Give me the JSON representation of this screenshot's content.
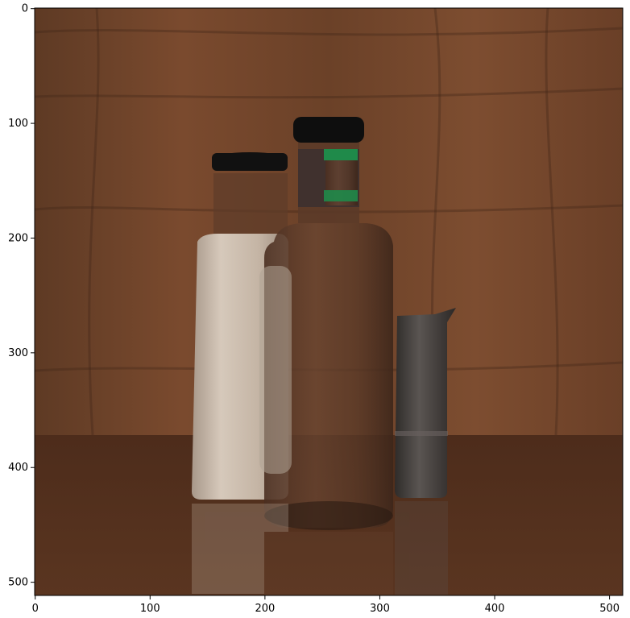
{
  "figure": {
    "description_free": true,
    "image_extent": {
      "width": 512,
      "height": 512
    },
    "x_ticks": [
      {
        "value": 0,
        "label": "0"
      },
      {
        "value": 100,
        "label": "100"
      },
      {
        "value": 200,
        "label": "200"
      },
      {
        "value": 300,
        "label": "300"
      },
      {
        "value": 400,
        "label": "400"
      },
      {
        "value": 500,
        "label": "500"
      }
    ],
    "y_ticks": [
      {
        "value": 0,
        "label": "0"
      },
      {
        "value": 100,
        "label": "100"
      },
      {
        "value": 200,
        "label": "200"
      },
      {
        "value": 300,
        "label": "300"
      },
      {
        "value": 400,
        "label": "400"
      },
      {
        "value": 500,
        "label": "500"
      }
    ],
    "colors": {
      "wood_light": "#7a4a2c",
      "wood_dark": "#3e2418",
      "table": "#4a2a1a",
      "white_bottle": "#cfc2b4",
      "glass": "#5a3a2a",
      "cap": "#111111",
      "label_green": "#1f8a4a",
      "metal": "#4a4644"
    }
  }
}
